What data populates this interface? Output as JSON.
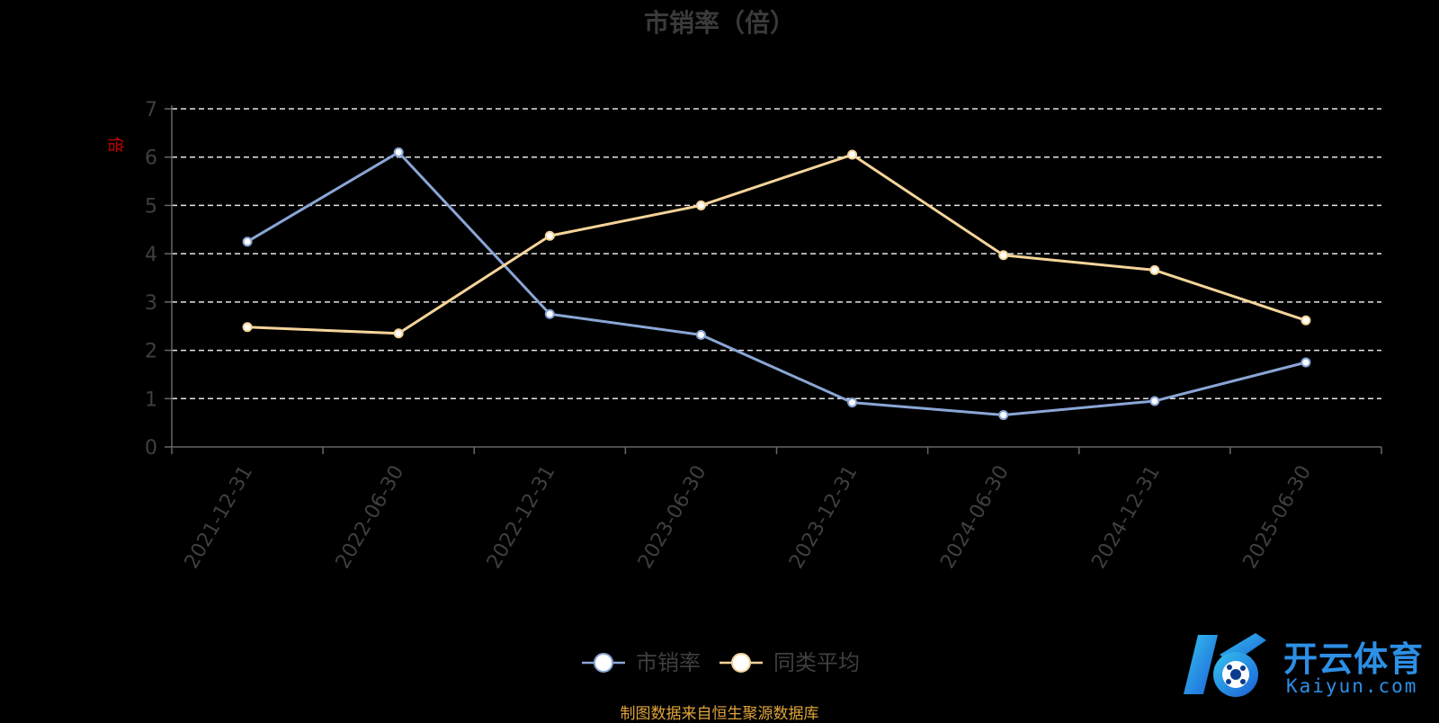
{
  "chart_data": {
    "type": "line",
    "title": "市销率（倍）",
    "ylabel": "倍",
    "categories": [
      "2021-12-31",
      "2022-06-30",
      "2022-12-31",
      "2023-06-30",
      "2023-12-31",
      "2024-06-30",
      "2024-12-31",
      "2025-06-30"
    ],
    "ylim": [
      0,
      7
    ],
    "yticks": [
      0,
      1,
      2,
      3,
      4,
      5,
      6,
      7
    ],
    "grid": true,
    "legend_position": "bottom-center",
    "series": [
      {
        "name": "市销率",
        "color": "#8aa6d6",
        "values": [
          4.25,
          6.1,
          2.75,
          2.32,
          0.92,
          0.66,
          0.95,
          1.75
        ]
      },
      {
        "name": "同类平均",
        "color": "#f5d49a",
        "values": [
          2.48,
          2.35,
          4.37,
          5.0,
          6.05,
          3.97,
          3.66,
          2.62
        ]
      }
    ]
  },
  "source_note": "制图数据来自恒生聚源数据库",
  "watermark": {
    "brand_cn": "开云体育",
    "brand_en": "Kaiyun.com",
    "color": "#2d8fe6"
  }
}
